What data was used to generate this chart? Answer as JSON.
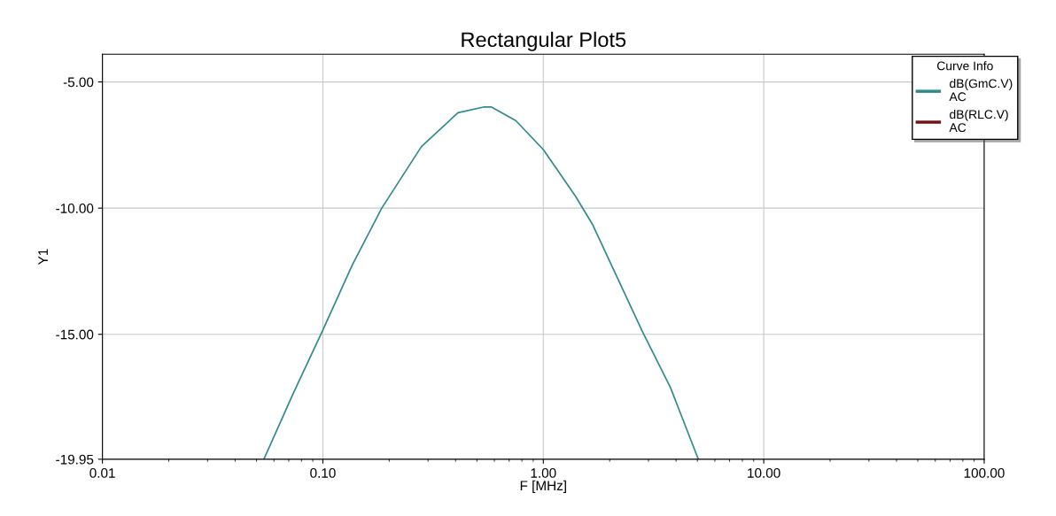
{
  "chart_data": {
    "type": "line",
    "title": "Rectangular Plot5",
    "xlabel": "F [MHz]",
    "ylabel": "Y1",
    "legend_title": "Curve Info",
    "log": "x",
    "grid": true,
    "legend": "top right",
    "marker": "none",
    "line_style": "solid",
    "xlim": [
      0.01,
      100
    ],
    "ylim": [
      -19.95,
      -3.9
    ],
    "xticks": [
      {
        "value": 0.01,
        "label": "0.01"
      },
      {
        "value": 0.1,
        "label": "0.10"
      },
      {
        "value": 1,
        "label": "1.00"
      },
      {
        "value": 10,
        "label": "10.00"
      },
      {
        "value": 100,
        "label": "100.00"
      }
    ],
    "yticks": [
      {
        "value": -19.95,
        "label": "-19.95"
      },
      {
        "value": -15,
        "label": "-15.00"
      },
      {
        "value": -10,
        "label": "-10.00"
      },
      {
        "value": -5,
        "label": "-5.00"
      }
    ],
    "series": [
      {
        "name": "dB(GmC.V)\nAC",
        "color": "#2e8a8c",
        "x": [
          0.054,
          0.0735,
          0.1,
          0.136,
          0.185,
          0.28,
          0.41,
          0.54,
          0.58,
          0.75,
          1.0,
          1.4,
          1.68,
          2.8,
          3.77,
          5.05
        ],
        "values": [
          -19.95,
          -17.33,
          -14.83,
          -12.25,
          -10.0,
          -7.56,
          -6.22,
          -5.99,
          -5.99,
          -6.53,
          -7.68,
          -9.53,
          -10.68,
          -14.85,
          -17.1,
          -19.95
        ]
      },
      {
        "name": "dB(RLC.V)\nAC",
        "color": "#6e1414"
      }
    ]
  }
}
